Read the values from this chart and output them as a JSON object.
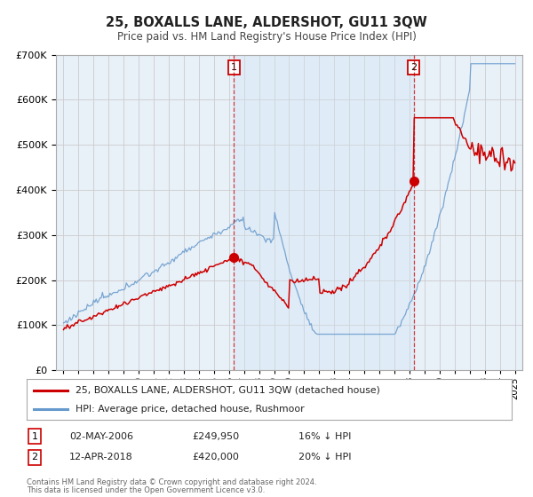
{
  "title": "25, BOXALLS LANE, ALDERSHOT, GU11 3QW",
  "subtitle": "Price paid vs. HM Land Registry's House Price Index (HPI)",
  "legend_label_red": "25, BOXALLS LANE, ALDERSHOT, GU11 3QW (detached house)",
  "legend_label_blue": "HPI: Average price, detached house, Rushmoor",
  "sale1_date": "02-MAY-2006",
  "sale1_price": 249950,
  "sale1_hpi": "16% ↓ HPI",
  "sale1_x": 2006.33,
  "sale2_date": "12-APR-2018",
  "sale2_price": 420000,
  "sale2_hpi": "20% ↓ HPI",
  "sale2_x": 2018.28,
  "footer_line1": "Contains HM Land Registry data © Crown copyright and database right 2024.",
  "footer_line2": "This data is licensed under the Open Government Licence v3.0.",
  "bg_color": "#e8f0f8",
  "shade_color": "#d0e4f4",
  "red_color": "#cc0000",
  "blue_color": "#6699cc",
  "vline_color": "#cc0000",
  "grid_color": "#cccccc",
  "ylim_max": 700000,
  "xlim_start": 1994.5,
  "xlim_end": 2025.5
}
